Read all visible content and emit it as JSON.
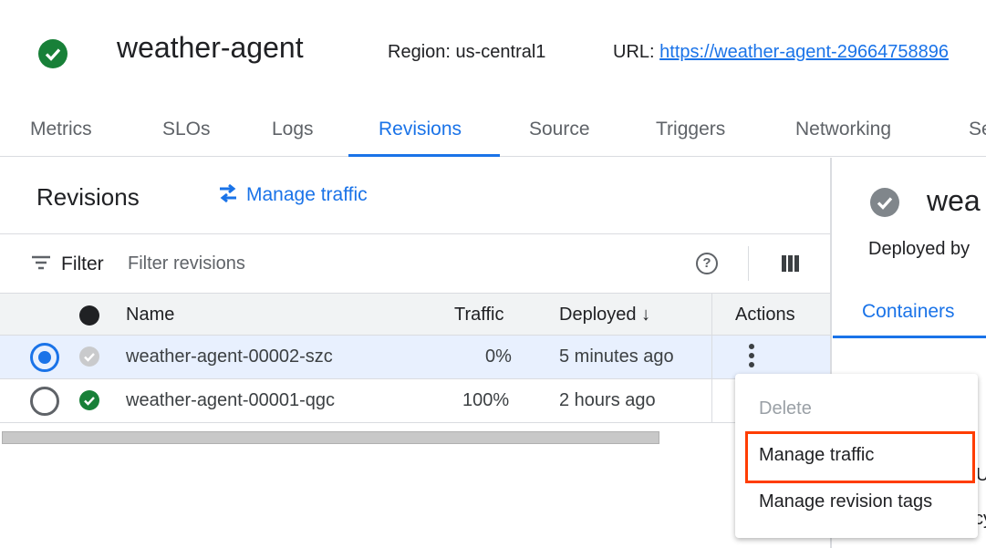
{
  "header": {
    "service_name": "weather-agent",
    "status_icon": "check-circle-icon",
    "status_color": "#188038",
    "region_label": "Region: us-central1",
    "url_label": "URL:",
    "url": "https://weather-agent-29664758896"
  },
  "tabs": [
    {
      "label": "Metrics"
    },
    {
      "label": "SLOs"
    },
    {
      "label": "Logs"
    },
    {
      "label": "Revisions",
      "active": true
    },
    {
      "label": "Source"
    },
    {
      "label": "Triggers"
    },
    {
      "label": "Networking"
    },
    {
      "label": "Se"
    }
  ],
  "revisions": {
    "title": "Revisions",
    "manage_traffic": "Manage traffic",
    "filter_label": "Filter",
    "filter_placeholder": "Filter revisions",
    "columns": {
      "name": "Name",
      "traffic": "Traffic",
      "deployed": "Deployed",
      "actions": "Actions"
    },
    "rows": [
      {
        "name": "weather-agent-00002-szc",
        "traffic": "0%",
        "deployed": "5 minutes ago",
        "selected": true,
        "status": "inactive"
      },
      {
        "name": "weather-agent-00001-qgc",
        "traffic": "100%",
        "deployed": "2 hours ago",
        "selected": false,
        "status": "ready"
      }
    ]
  },
  "detail": {
    "title": "wea",
    "deployed_by": "Deployed by",
    "tab": "Containers",
    "frag1": "U",
    "frag2": "cy"
  },
  "menu": {
    "items": [
      {
        "label": "Delete",
        "disabled": true
      },
      {
        "label": "Manage traffic",
        "highlighted": true
      },
      {
        "label": "Manage revision tags"
      }
    ]
  },
  "colors": {
    "accent": "#1a73e8",
    "highlight": "#ff3d00",
    "selected_row": "#e8f0fe"
  }
}
